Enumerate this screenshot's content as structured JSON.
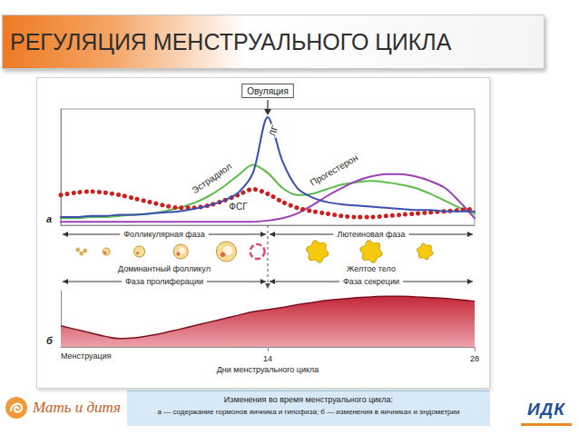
{
  "header": {
    "title": "РЕГУЛЯЦИЯ МЕНСТРУАЛЬНОГО ЦИКЛА"
  },
  "chart_data": [
    {
      "type": "line",
      "panel": "а",
      "x": [
        0,
        1,
        2,
        3,
        4,
        5,
        6,
        7,
        8,
        9,
        10,
        11,
        12,
        13,
        14,
        15,
        16,
        17,
        18,
        19,
        20,
        21,
        22,
        23,
        24,
        25,
        26,
        27,
        28
      ],
      "series": [
        {
          "name": "ЛГ",
          "color": "#3a4fb0",
          "line_style": "solid",
          "values": [
            7,
            7,
            8,
            8,
            9,
            9,
            10,
            11,
            12,
            14,
            17,
            21,
            28,
            45,
            93,
            55,
            32,
            24,
            20,
            18,
            17,
            16,
            15,
            14,
            13,
            13,
            12,
            12,
            12
          ]
        },
        {
          "name": "Эстрадиол",
          "color": "#5dbb4a",
          "line_style": "solid",
          "values": [
            6,
            6,
            7,
            7,
            8,
            9,
            10,
            12,
            15,
            19,
            25,
            33,
            43,
            52,
            45,
            32,
            26,
            27,
            31,
            35,
            37,
            38,
            37,
            35,
            32,
            27,
            21,
            15,
            10
          ]
        },
        {
          "name": "Прогестерон",
          "color": "#9b3fb5",
          "line_style": "solid",
          "values": [
            3,
            3,
            3,
            3,
            3,
            3,
            3,
            3,
            3,
            3,
            3,
            3,
            3,
            3,
            4,
            6,
            10,
            17,
            25,
            32,
            38,
            42,
            44,
            44,
            42,
            38,
            32,
            20,
            6
          ]
        },
        {
          "name": "ФСГ",
          "color": "#cc1f1f",
          "line_style": "dotted",
          "values": [
            26,
            28,
            29,
            28,
            26,
            23,
            20,
            17,
            15,
            15,
            17,
            21,
            26,
            31,
            27,
            20,
            15,
            12,
            10,
            8,
            7,
            7,
            8,
            9,
            10,
            11,
            12,
            13,
            14
          ]
        }
      ],
      "xlim": [
        0,
        28
      ],
      "ylim": [
        0,
        100
      ],
      "xticks": [],
      "yticks": [],
      "grid": false,
      "tick_labels": false,
      "annotations": [
        {
          "text": "Овуляция",
          "x": 14
        }
      ]
    },
    {
      "type": "area",
      "panel": "б",
      "x": [
        0,
        1,
        2,
        3,
        4,
        5,
        6,
        7,
        8,
        9,
        10,
        11,
        12,
        13,
        14,
        15,
        16,
        17,
        18,
        19,
        20,
        21,
        22,
        23,
        24,
        25,
        26,
        27,
        28
      ],
      "values": [
        3,
        2.5,
        2,
        1.5,
        1.2,
        1.3,
        1.6,
        2,
        2.5,
        3,
        3.5,
        4,
        4.5,
        5,
        5.3,
        5.6,
        6,
        6.3,
        6.6,
        6.8,
        7,
        7.1,
        7.2,
        7.2,
        7.1,
        7,
        6.9,
        6.7,
        6.5
      ],
      "color": "#c4283a",
      "xlim": [
        0,
        28
      ],
      "ylim": [
        0,
        8
      ],
      "xticks": [
        14,
        28
      ],
      "yticks": [],
      "grid": false,
      "tick_labels": "x",
      "xlabel": "Дни менструального цикла",
      "annotations": [
        {
          "text": "Менструация",
          "x": 0
        }
      ]
    }
  ],
  "stages": {
    "ovary_phases": [
      "Фолликулярная фаза",
      "Лютеиновая фаза"
    ],
    "ovary_labels": [
      "Доминантный фолликул",
      "Желтое тело"
    ],
    "endometrium_phases": [
      "Фаза пролиферации",
      "Фаза секреции"
    ]
  },
  "caption": {
    "title": "Изменения во время менструального цикла:",
    "text": "а — содержание гормонов яичника и гипофиза; б — изменения в яичниках и эндометрии"
  },
  "logos": [
    "Мать и дитя",
    "ИДК"
  ]
}
